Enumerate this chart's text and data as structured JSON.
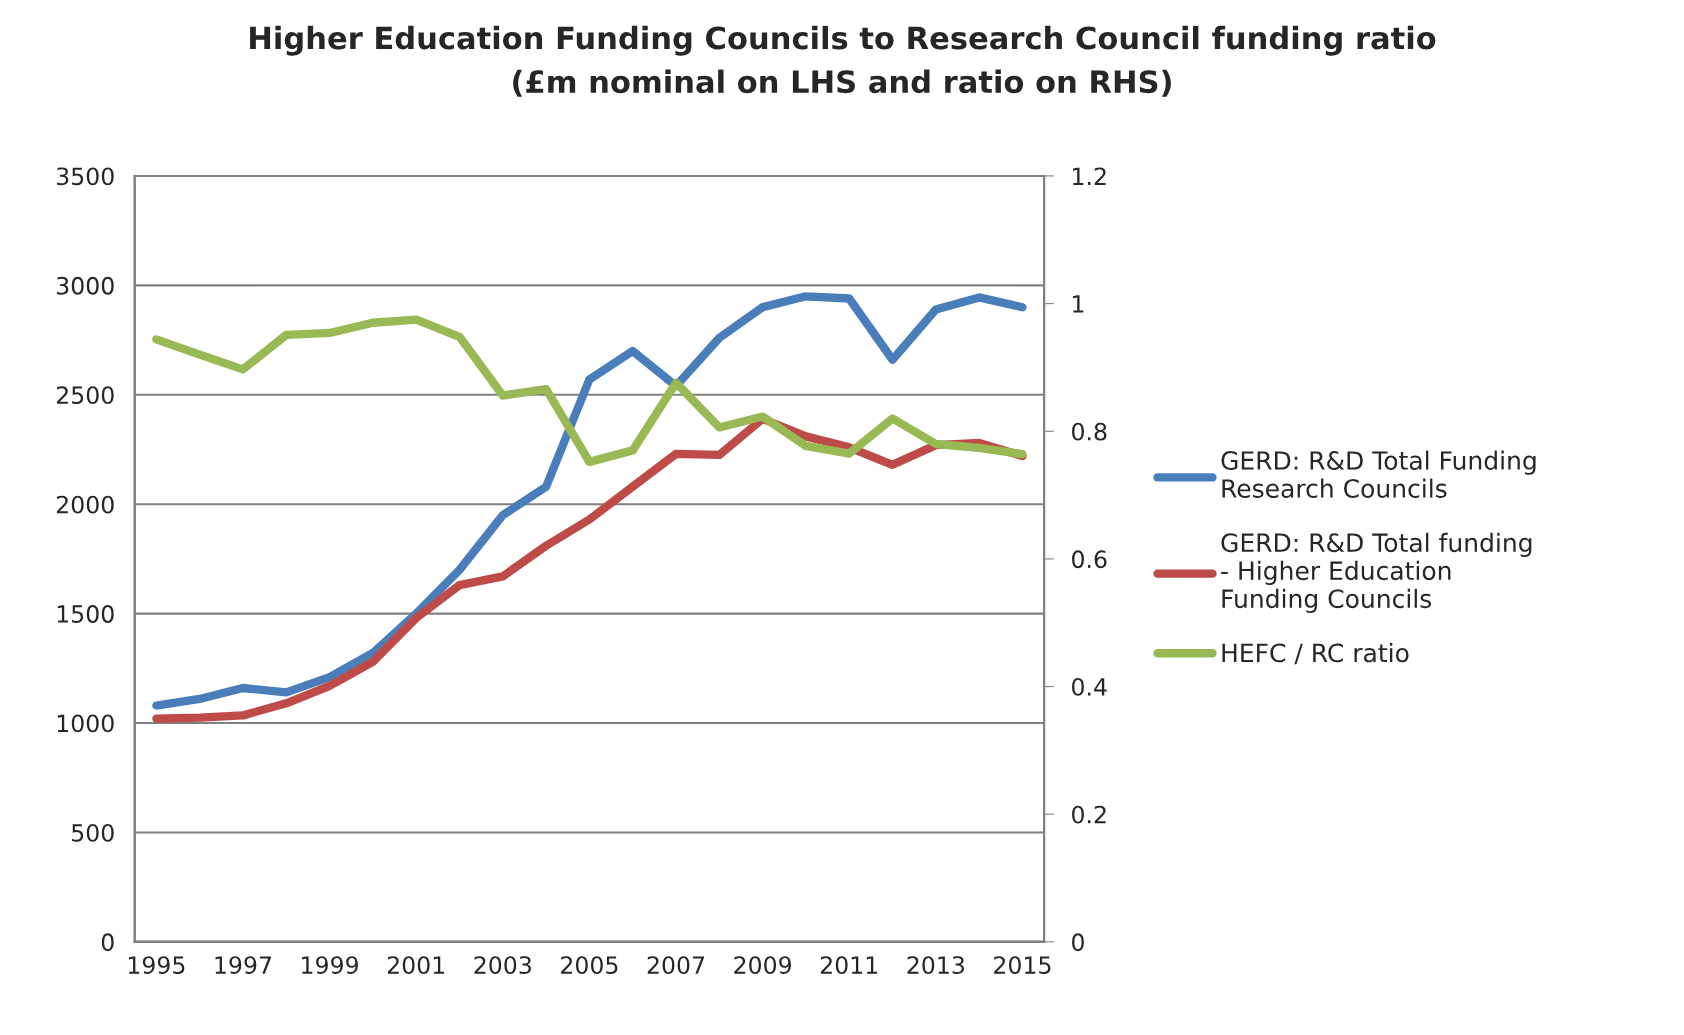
{
  "chart_data": {
    "type": "line",
    "title": "Higher Education Funding Councils to Research Council funding ratio\n(£m nominal on LHS and ratio on RHS)",
    "categories": [
      "1995",
      null,
      "1997",
      null,
      "1999",
      null,
      "2001",
      null,
      "2003",
      null,
      "2005",
      null,
      "2007",
      null,
      "2009",
      null,
      "2011",
      null,
      "2013",
      null,
      "2015"
    ],
    "series": [
      {
        "name": "GERD: R&D Total Funding Research Councils",
        "color": "#4a7ebb",
        "values": [
          1080,
          1110,
          1160,
          1140,
          1210,
          1320,
          1500,
          1700,
          1950,
          2080,
          2570,
          2700,
          2540,
          2760,
          2900,
          2950,
          2940,
          2660,
          2890,
          2945,
          2900
        ]
      },
      {
        "name": "GERD: R&D Total funding - Higher Education Funding Councils",
        "color": "#be4b48",
        "values": [
          1020,
          1025,
          1035,
          1090,
          1170,
          1280,
          1480,
          1630,
          1670,
          1810,
          1930,
          2080,
          2230,
          2225,
          2390,
          2310,
          2260,
          2180,
          2270,
          2280,
          2220
        ]
      },
      {
        "name": "HEFC / RC ratio",
        "color": "#98b954",
        "axis": "y2",
        "values": [
          0.944,
          0.92,
          0.897,
          0.951,
          0.954,
          0.97,
          0.975,
          0.948,
          0.856,
          0.866,
          0.752,
          0.77,
          0.876,
          0.806,
          0.823,
          0.777,
          0.765,
          0.82,
          0.78,
          0.774,
          0.764
        ]
      }
    ],
    "ylim": [
      0,
      3500
    ],
    "yticks": [
      0,
      500,
      1000,
      1500,
      2000,
      2500,
      3000,
      3500
    ],
    "y2lim": [
      0,
      1.2
    ],
    "y2ticks": [
      0,
      0.2,
      0.4,
      0.6,
      0.8,
      1,
      1.2
    ],
    "grid": "y",
    "legend": "right",
    "marker": "none",
    "line_style": "solid"
  }
}
